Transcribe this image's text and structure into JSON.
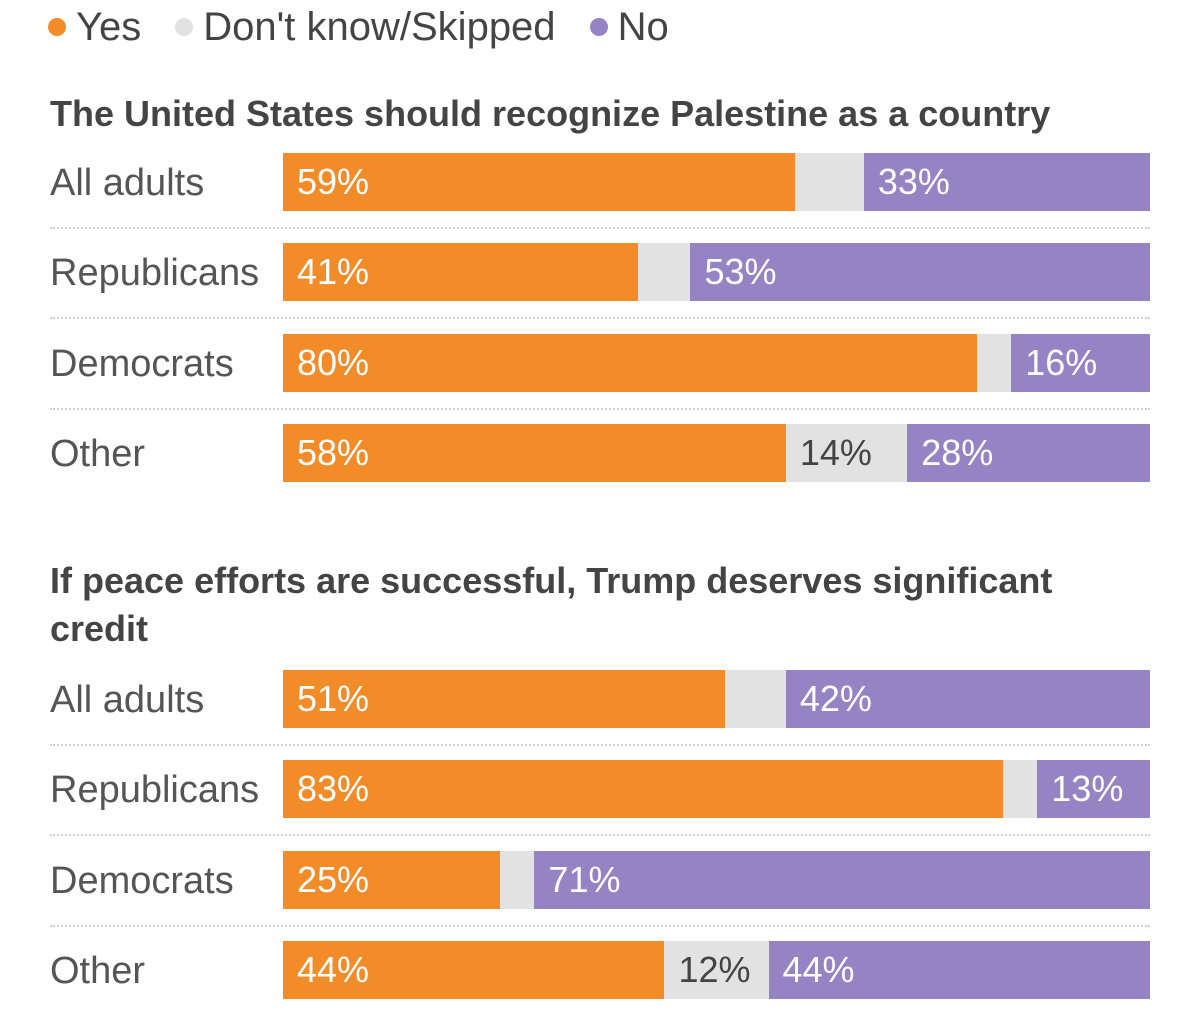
{
  "legend": [
    {
      "label": "Yes",
      "color": "#f28c28"
    },
    {
      "label": "Don't know/Skipped",
      "color": "#e2e2e2"
    },
    {
      "label": "No",
      "color": "#9683c4"
    }
  ],
  "chart_data": [
    {
      "type": "bar",
      "orientation": "horizontal-stacked-100",
      "title": "The United States should recognize Palestine as a country",
      "categories": [
        "All adults",
        "Republicans",
        "Democrats",
        "Other"
      ],
      "series": [
        {
          "name": "Yes",
          "values": [
            59,
            41,
            80,
            58
          ],
          "labels": [
            "59%",
            "41%",
            "80%",
            "58%"
          ],
          "color": "#f28c28",
          "text_color": "#ffffff"
        },
        {
          "name": "Don't know/Skipped",
          "values": [
            8,
            6,
            4,
            14
          ],
          "labels": [
            "",
            "",
            "",
            "14%"
          ],
          "color": "#e2e2e2",
          "text_color": "#444444"
        },
        {
          "name": "No",
          "values": [
            33,
            53,
            16,
            28
          ],
          "labels": [
            "33%",
            "53%",
            "16%",
            "28%"
          ],
          "color": "#9683c4",
          "text_color": "#ffffff"
        }
      ]
    },
    {
      "type": "bar",
      "orientation": "horizontal-stacked-100",
      "title": "If peace efforts are successful, Trump deserves significant credit",
      "categories": [
        "All adults",
        "Republicans",
        "Democrats",
        "Other"
      ],
      "series": [
        {
          "name": "Yes",
          "values": [
            51,
            83,
            25,
            44
          ],
          "labels": [
            "51%",
            "83%",
            "25%",
            "44%"
          ],
          "color": "#f28c28",
          "text_color": "#ffffff"
        },
        {
          "name": "Don't know/Skipped",
          "values": [
            7,
            4,
            4,
            12
          ],
          "labels": [
            "",
            "",
            "",
            "12%"
          ],
          "color": "#e2e2e2",
          "text_color": "#444444"
        },
        {
          "name": "No",
          "values": [
            42,
            13,
            71,
            44
          ],
          "labels": [
            "42%",
            "13%",
            "71%",
            "44%"
          ],
          "color": "#9683c4",
          "text_color": "#ffffff"
        }
      ]
    }
  ]
}
